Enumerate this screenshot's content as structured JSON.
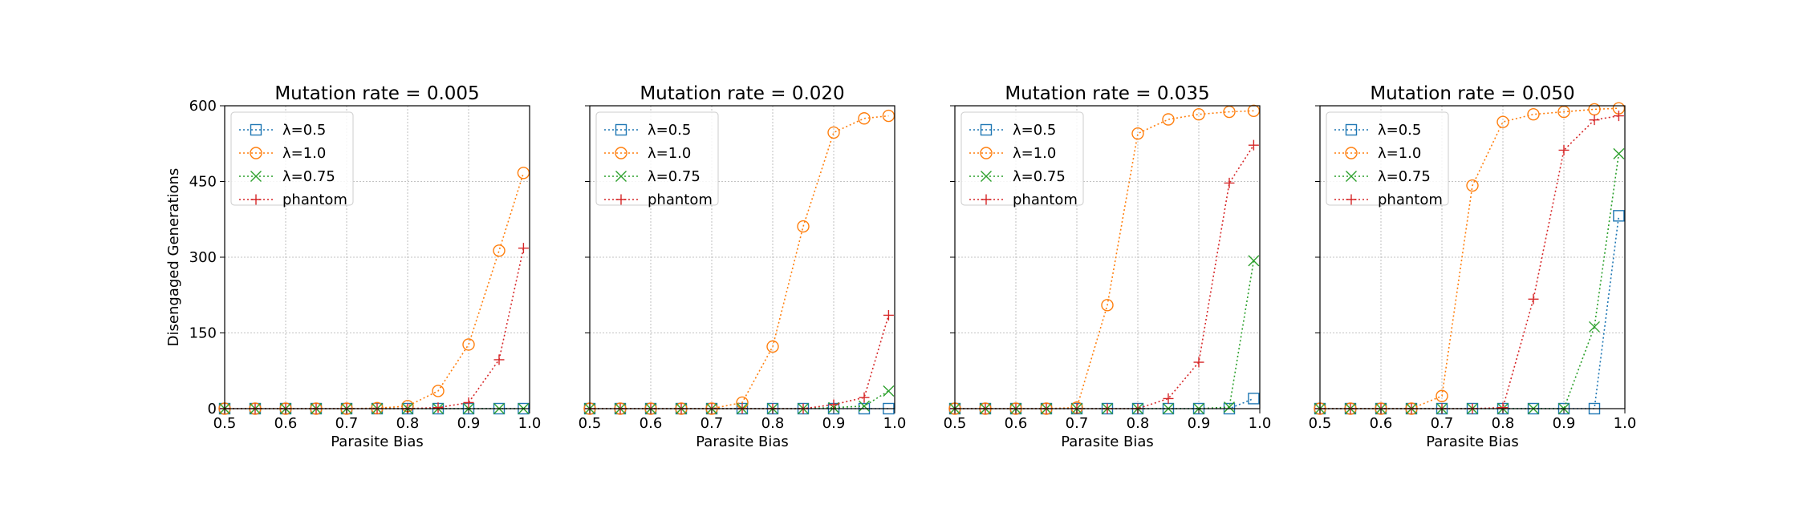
{
  "chart_data": [
    {
      "type": "line",
      "title": "Mutation rate = 0.005",
      "xlabel": "Parasite Bias",
      "ylabel": "Disengaged Generations",
      "xlim": [
        0.5,
        1.0
      ],
      "ylim": [
        0,
        600
      ],
      "xticks": [
        "0.5",
        "0.6",
        "0.7",
        "0.8",
        "0.9",
        "1.0"
      ],
      "yticks": [
        "0",
        "150",
        "300",
        "450",
        "600"
      ],
      "grid": true,
      "legend": "top-left",
      "x": [
        0.5,
        0.55,
        0.6,
        0.65,
        0.7,
        0.75,
        0.8,
        0.85,
        0.9,
        0.95,
        0.99
      ],
      "series": [
        {
          "name": "λ=0.5",
          "values": [
            0,
            0,
            0,
            0,
            0,
            0,
            0,
            0,
            0,
            0,
            0
          ]
        },
        {
          "name": "λ=1.0",
          "values": [
            0,
            0,
            0,
            0,
            0,
            1,
            5,
            35,
            127,
            313,
            467
          ]
        },
        {
          "name": "λ=0.75",
          "values": [
            0,
            0,
            0,
            0,
            0,
            0,
            0,
            0,
            0,
            0,
            0
          ]
        },
        {
          "name": "phantom",
          "values": [
            0,
            0,
            0,
            0,
            0,
            0,
            0,
            2,
            12,
            97,
            318
          ]
        }
      ]
    },
    {
      "type": "line",
      "title": "Mutation rate = 0.020",
      "xlabel": "Parasite Bias",
      "ylabel": "",
      "xlim": [
        0.5,
        1.0
      ],
      "ylim": [
        0,
        600
      ],
      "xticks": [
        "0.5",
        "0.6",
        "0.7",
        "0.8",
        "0.9",
        "1.0"
      ],
      "yticks": [],
      "grid": true,
      "legend": "top-left",
      "x": [
        0.5,
        0.55,
        0.6,
        0.65,
        0.7,
        0.75,
        0.8,
        0.85,
        0.9,
        0.95,
        0.99
      ],
      "series": [
        {
          "name": "λ=0.5",
          "values": [
            0,
            0,
            0,
            0,
            0,
            0,
            0,
            0,
            0,
            0,
            0
          ]
        },
        {
          "name": "λ=1.0",
          "values": [
            0,
            0,
            0,
            0,
            0,
            12,
            123,
            361,
            547,
            575,
            580
          ]
        },
        {
          "name": "λ=0.75",
          "values": [
            0,
            0,
            0,
            0,
            0,
            0,
            0,
            0,
            2,
            5,
            35
          ]
        },
        {
          "name": "phantom",
          "values": [
            0,
            0,
            0,
            0,
            0,
            0,
            0,
            0,
            8,
            22,
            185
          ]
        }
      ]
    },
    {
      "type": "line",
      "title": "Mutation rate = 0.035",
      "xlabel": "Parasite Bias",
      "ylabel": "",
      "xlim": [
        0.5,
        1.0
      ],
      "ylim": [
        0,
        600
      ],
      "xticks": [
        "0.5",
        "0.6",
        "0.7",
        "0.8",
        "0.9",
        "1.0"
      ],
      "yticks": [],
      "grid": true,
      "legend": "top-left",
      "x": [
        0.5,
        0.55,
        0.6,
        0.65,
        0.7,
        0.75,
        0.8,
        0.85,
        0.9,
        0.95,
        0.99
      ],
      "series": [
        {
          "name": "λ=0.5",
          "values": [
            0,
            0,
            0,
            0,
            0,
            0,
            0,
            0,
            0,
            0,
            20
          ]
        },
        {
          "name": "λ=1.0",
          "values": [
            0,
            0,
            0,
            0,
            2,
            205,
            545,
            573,
            583,
            588,
            590
          ]
        },
        {
          "name": "λ=0.75",
          "values": [
            0,
            0,
            0,
            0,
            0,
            0,
            0,
            0,
            0,
            3,
            293
          ]
        },
        {
          "name": "phantom",
          "values": [
            0,
            0,
            0,
            0,
            0,
            0,
            0,
            20,
            92,
            447,
            522
          ]
        }
      ]
    },
    {
      "type": "line",
      "title": "Mutation rate = 0.050",
      "xlabel": "Parasite Bias",
      "ylabel": "",
      "xlim": [
        0.5,
        1.0
      ],
      "ylim": [
        0,
        600
      ],
      "xticks": [
        "0.5",
        "0.6",
        "0.7",
        "0.8",
        "0.9",
        "1.0"
      ],
      "yticks": [],
      "grid": true,
      "legend": "top-left",
      "x": [
        0.5,
        0.55,
        0.6,
        0.65,
        0.7,
        0.75,
        0.8,
        0.85,
        0.9,
        0.95,
        0.99
      ],
      "series": [
        {
          "name": "λ=0.5",
          "values": [
            0,
            0,
            0,
            0,
            0,
            0,
            0,
            0,
            0,
            0,
            382
          ]
        },
        {
          "name": "λ=1.0",
          "values": [
            0,
            0,
            0,
            0,
            25,
            442,
            568,
            583,
            588,
            593,
            595
          ]
        },
        {
          "name": "λ=0.75",
          "values": [
            0,
            0,
            0,
            0,
            0,
            0,
            0,
            0,
            0,
            162,
            505
          ]
        },
        {
          "name": "phantom",
          "values": [
            0,
            0,
            0,
            0,
            0,
            0,
            2,
            217,
            512,
            572,
            580
          ]
        }
      ]
    }
  ],
  "series_styles": [
    {
      "color": "#1f77b4",
      "marker": "square"
    },
    {
      "color": "#ff7f0e",
      "marker": "circle"
    },
    {
      "color": "#2ca02c",
      "marker": "x"
    },
    {
      "color": "#d62728",
      "marker": "plus"
    }
  ]
}
